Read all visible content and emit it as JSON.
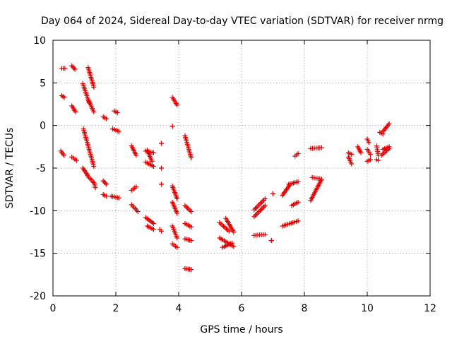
{
  "chart_data": {
    "type": "scatter",
    "title": "Day 064 of 2024, Sidereal Day-to-day VTEC variation (SDTVAR) for receiver nrmg",
    "xlabel": "GPS time / hours",
    "ylabel": "SDTVAR / TECUs",
    "xlim": [
      0,
      12
    ],
    "ylim": [
      -20,
      10
    ],
    "xticks": [
      0,
      2,
      4,
      6,
      8,
      10,
      12
    ],
    "yticks": [
      -20,
      -15,
      -10,
      -5,
      0,
      5,
      10
    ],
    "grid": true,
    "marker": "+",
    "color": "#e00000",
    "segments": [
      [
        [
          0.28,
          6.7
        ],
        [
          0.38,
          6.7
        ]
      ],
      [
        [
          0.28,
          3.5
        ],
        [
          0.36,
          3.3
        ]
      ],
      [
        [
          0.25,
          -3.0
        ],
        [
          0.35,
          -3.5
        ]
      ],
      [
        [
          0.6,
          7.0
        ],
        [
          0.7,
          6.6
        ]
      ],
      [
        [
          0.6,
          2.3
        ],
        [
          0.72,
          1.6
        ]
      ],
      [
        [
          0.6,
          -3.7
        ],
        [
          0.75,
          -4.1
        ]
      ],
      [
        [
          0.95,
          4.9
        ],
        [
          1.15,
          2.7
        ]
      ],
      [
        [
          1.12,
          6.8
        ],
        [
          1.3,
          4.5
        ]
      ],
      [
        [
          1.15,
          2.8
        ],
        [
          1.3,
          1.6
        ]
      ],
      [
        [
          0.97,
          -0.4
        ],
        [
          1.3,
          -4.8
        ]
      ],
      [
        [
          0.95,
          -5.0
        ],
        [
          1.1,
          -5.8
        ]
      ],
      [
        [
          1.1,
          -5.9
        ],
        [
          1.3,
          -6.7
        ]
      ],
      [
        [
          1.3,
          -6.7
        ],
        [
          1.35,
          -7.3
        ]
      ],
      [
        [
          1.6,
          1.0
        ],
        [
          1.7,
          0.8
        ]
      ],
      [
        [
          1.6,
          -6.5
        ],
        [
          1.7,
          -6.9
        ]
      ],
      [
        [
          1.6,
          -8.1
        ],
        [
          1.7,
          -8.3
        ]
      ],
      [
        [
          1.9,
          -0.4
        ],
        [
          2.1,
          -0.7
        ]
      ],
      [
        [
          1.95,
          1.7
        ],
        [
          2.05,
          1.5
        ]
      ],
      [
        [
          1.85,
          -8.3
        ],
        [
          2.1,
          -8.5
        ]
      ],
      [
        [
          2.5,
          -2.4
        ],
        [
          2.65,
          -3.5
        ]
      ],
      [
        [
          2.5,
          -7.6
        ],
        [
          2.65,
          -7.2
        ]
      ],
      [
        [
          2.5,
          -9.3
        ],
        [
          2.7,
          -10.1
        ]
      ],
      [
        [
          2.95,
          -3.0
        ],
        [
          3.2,
          -3.2
        ]
      ],
      [
        [
          2.95,
          -4.3
        ],
        [
          3.2,
          -4.8
        ]
      ],
      [
        [
          3.0,
          -2.9
        ],
        [
          3.15,
          -4.2
        ]
      ],
      [
        [
          3.45,
          -2.1
        ],
        [
          3.45,
          -2.1
        ]
      ],
      [
        [
          3.45,
          -5.0
        ],
        [
          3.45,
          -5.0
        ]
      ],
      [
        [
          3.45,
          -6.9
        ],
        [
          3.45,
          -6.9
        ]
      ],
      [
        [
          2.95,
          -10.8
        ],
        [
          3.2,
          -11.5
        ]
      ],
      [
        [
          3.0,
          -11.8
        ],
        [
          3.2,
          -12.2
        ]
      ],
      [
        [
          3.4,
          -12.2
        ],
        [
          3.45,
          -12.4
        ]
      ],
      [
        [
          3.8,
          -0.1
        ],
        [
          3.8,
          -0.1
        ]
      ],
      [
        [
          3.8,
          3.3
        ],
        [
          3.95,
          2.4
        ]
      ],
      [
        [
          3.8,
          -7.1
        ],
        [
          3.95,
          -8.6
        ]
      ],
      [
        [
          3.8,
          -9.0
        ],
        [
          3.95,
          -10.3
        ]
      ],
      [
        [
          3.8,
          -11.8
        ],
        [
          3.95,
          -13.2
        ]
      ],
      [
        [
          3.8,
          -13.9
        ],
        [
          3.95,
          -14.3
        ]
      ],
      [
        [
          4.2,
          -1.2
        ],
        [
          4.4,
          -3.8
        ]
      ],
      [
        [
          4.2,
          -9.4
        ],
        [
          4.4,
          -10.1
        ]
      ],
      [
        [
          4.2,
          -11.5
        ],
        [
          4.4,
          -11.9
        ]
      ],
      [
        [
          4.2,
          -13.3
        ],
        [
          4.4,
          -13.5
        ]
      ],
      [
        [
          4.2,
          -16.8
        ],
        [
          4.4,
          -16.9
        ]
      ],
      [
        [
          5.3,
          -11.4
        ],
        [
          5.6,
          -12.4
        ]
      ],
      [
        [
          5.5,
          -10.9
        ],
        [
          5.75,
          -12.5
        ]
      ],
      [
        [
          5.3,
          -13.2
        ],
        [
          5.75,
          -14.2
        ]
      ],
      [
        [
          5.4,
          -14.3
        ],
        [
          5.7,
          -13.8
        ]
      ],
      [
        [
          6.4,
          -9.9
        ],
        [
          6.75,
          -8.6
        ]
      ],
      [
        [
          6.4,
          -10.7
        ],
        [
          6.75,
          -9.4
        ]
      ],
      [
        [
          6.4,
          -12.9
        ],
        [
          6.75,
          -12.8
        ]
      ],
      [
        [
          6.95,
          -13.5
        ],
        [
          6.95,
          -13.5
        ]
      ],
      [
        [
          7.0,
          -8.0
        ],
        [
          7.0,
          -8.0
        ]
      ],
      [
        [
          7.3,
          -11.8
        ],
        [
          7.8,
          -11.2
        ]
      ],
      [
        [
          7.3,
          -8.2
        ],
        [
          7.55,
          -6.9
        ]
      ],
      [
        [
          7.5,
          -6.9
        ],
        [
          7.8,
          -6.6
        ]
      ],
      [
        [
          7.6,
          -9.4
        ],
        [
          7.8,
          -9.0
        ]
      ],
      [
        [
          7.7,
          -3.6
        ],
        [
          7.8,
          -3.3
        ]
      ],
      [
        [
          8.2,
          -2.7
        ],
        [
          8.55,
          -2.6
        ]
      ],
      [
        [
          8.2,
          -8.8
        ],
        [
          8.55,
          -6.3
        ]
      ],
      [
        [
          8.25,
          -6.1
        ],
        [
          8.55,
          -6.3
        ]
      ],
      [
        [
          9.4,
          -3.7
        ],
        [
          9.5,
          -4.5
        ]
      ],
      [
        [
          9.4,
          -3.2
        ],
        [
          9.5,
          -3.4
        ]
      ],
      [
        [
          9.7,
          -2.5
        ],
        [
          9.8,
          -3.2
        ]
      ],
      [
        [
          10.0,
          -1.6
        ],
        [
          10.05,
          -2.0
        ]
      ],
      [
        [
          10.0,
          -2.8
        ],
        [
          10.1,
          -3.4
        ]
      ],
      [
        [
          10.0,
          -4.2
        ],
        [
          10.1,
          -4.0
        ]
      ],
      [
        [
          10.3,
          -2.4
        ],
        [
          10.35,
          -3.5
        ]
      ],
      [
        [
          10.3,
          -4.0
        ],
        [
          10.35,
          -4.1
        ]
      ],
      [
        [
          10.5,
          -0.7
        ],
        [
          10.7,
          0.2
        ]
      ],
      [
        [
          10.45,
          -3.5
        ],
        [
          10.7,
          -2.7
        ]
      ],
      [
        [
          10.5,
          -2.8
        ],
        [
          10.7,
          -2.5
        ]
      ],
      [
        [
          10.4,
          -0.8
        ],
        [
          10.5,
          -1.0
        ]
      ]
    ]
  }
}
